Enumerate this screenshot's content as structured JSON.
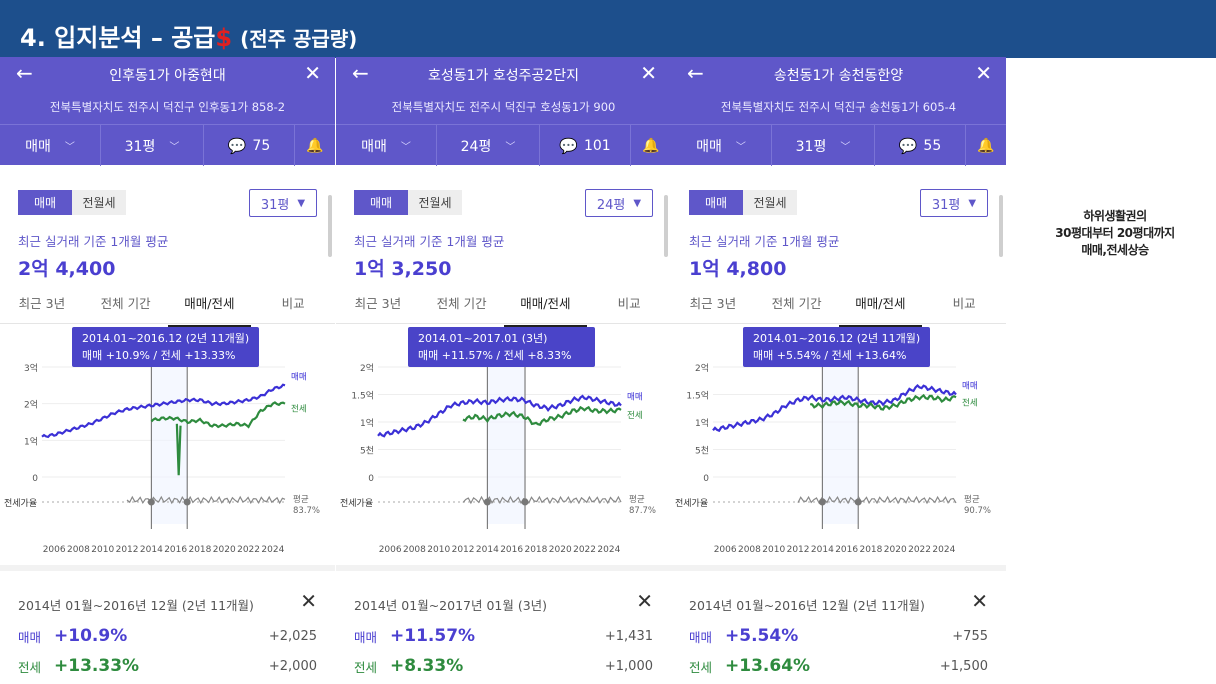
{
  "slide": {
    "title_main": "4. 입지분석 – 공급",
    "title_dollar": "$",
    "title_sub": "(전주 공급량)",
    "note_lines": [
      "하위생활권의",
      "30평대부터 20평대까지",
      "매매,전세상승"
    ]
  },
  "colors": {
    "header_bg": "#1d4f8c",
    "app_bar": "#5f57c9",
    "buy_line": "#3b30d6",
    "jeonse_line": "#2e8b3e",
    "dollar": "#e02020"
  },
  "panels": [
    {
      "name": "인후동1가 아중현대",
      "address": "전북특별자치도 전주시 덕진구 인후동1가 858-2",
      "deal_type": "매매",
      "size": "31평",
      "comments": "75",
      "toggle": [
        "매매",
        "전월세"
      ],
      "size_select": "31평",
      "recent_label": "최근 실거래 기준 1개월 평균",
      "recent_price": "2억 4,400",
      "tabs": [
        "최근 3년",
        "전체 기간",
        "매매/전세",
        "비교"
      ],
      "tooltip_range": "2014.01~2016.12 (2년 11개월)",
      "tooltip_values": "매매 +10.9%  /  전세 +13.33%",
      "y_labels": [
        "3억",
        "2억",
        "1억",
        "0"
      ],
      "series_labels": [
        "매매",
        "전세"
      ],
      "ratio_label": "전세가율",
      "avg_label": "평균",
      "avg_value": "83.7%",
      "x_labels": [
        "2006",
        "2008",
        "2010",
        "2012",
        "2014",
        "2016",
        "2018",
        "2020",
        "2022",
        "2024"
      ],
      "chart_data": {
        "type": "line",
        "x": [
          2005,
          2006,
          2007,
          2008,
          2009,
          2010,
          2011,
          2012,
          2013,
          2014,
          2015,
          2016,
          2017,
          2018,
          2019,
          2020,
          2021,
          2022,
          2023,
          2024,
          2025
        ],
        "ylim": [
          0,
          3
        ],
        "yunit": "억",
        "series": [
          {
            "name": "매매",
            "values": [
              1.1,
              1.15,
              1.25,
              1.35,
              1.45,
              1.6,
              1.75,
              1.85,
              1.9,
              1.95,
              2.0,
              2.05,
              2.1,
              2.1,
              2.0,
              2.0,
              2.05,
              2.1,
              2.2,
              2.4,
              2.5
            ]
          },
          {
            "name": "전세",
            "values": [
              null,
              null,
              null,
              null,
              null,
              null,
              null,
              null,
              null,
              1.55,
              1.6,
              1.6,
              1.5,
              1.55,
              1.4,
              1.4,
              1.45,
              1.4,
              1.8,
              2.0,
              2.0
            ]
          }
        ]
      },
      "range_text": "2014년 01월~2016년 12월 (2년 11개월)",
      "buy_label": "매매",
      "buy_pct": "+10.9%",
      "buy_amt": "+2,025",
      "jeon_label": "전세",
      "jeon_pct": "+13.33%",
      "jeon_amt": "+2,000"
    },
    {
      "name": "호성동1가 호성주공2단지",
      "address": "전북특별자치도 전주시 덕진구 호성동1가 900",
      "deal_type": "매매",
      "size": "24평",
      "comments": "101",
      "toggle": [
        "매매",
        "전월세"
      ],
      "size_select": "24평",
      "recent_label": "최근 실거래 기준 1개월 평균",
      "recent_price": "1억 3,250",
      "tabs": [
        "최근 3년",
        "전체 기간",
        "매매/전세",
        "비교"
      ],
      "tooltip_range": "2014.01~2017.01 (3년)",
      "tooltip_values": "매매 +11.57%  /  전세 +8.33%",
      "y_labels": [
        "2억",
        "1.5억",
        "1억",
        "5천",
        "0"
      ],
      "series_labels": [
        "매매",
        "전세"
      ],
      "ratio_label": "전세가율",
      "avg_label": "평균",
      "avg_value": "87.7%",
      "x_labels": [
        "2006",
        "2008",
        "2010",
        "2012",
        "2014",
        "2016",
        "2018",
        "2020",
        "2022",
        "2024"
      ],
      "chart_data": {
        "type": "line",
        "x": [
          2005,
          2006,
          2007,
          2008,
          2009,
          2010,
          2011,
          2012,
          2013,
          2014,
          2015,
          2016,
          2017,
          2018,
          2019,
          2020,
          2021,
          2022,
          2023,
          2024,
          2025
        ],
        "ylim": [
          0,
          2
        ],
        "yunit": "억",
        "series": [
          {
            "name": "매매",
            "values": [
              0.75,
              0.8,
              0.85,
              0.9,
              1.0,
              1.15,
              1.3,
              1.35,
              1.38,
              1.35,
              1.4,
              1.42,
              1.4,
              1.3,
              1.25,
              1.3,
              1.4,
              1.45,
              1.4,
              1.35,
              1.3
            ]
          },
          {
            "name": "전세",
            "values": [
              null,
              null,
              null,
              null,
              null,
              null,
              null,
              1.05,
              1.1,
              1.05,
              1.12,
              1.15,
              1.1,
              0.95,
              1.05,
              1.1,
              1.2,
              1.25,
              1.2,
              1.2,
              1.22
            ]
          }
        ]
      },
      "range_text": "2014년 01월~2017년 01월 (3년)",
      "buy_label": "매매",
      "buy_pct": "+11.57%",
      "buy_amt": "+1,431",
      "jeon_label": "전세",
      "jeon_pct": "+8.33%",
      "jeon_amt": "+1,000"
    },
    {
      "name": "송천동1가 송천동한양",
      "address": "전북특별자치도 전주시 덕진구 송천동1가 605-4",
      "deal_type": "매매",
      "size": "31평",
      "comments": "55",
      "toggle": [
        "매매",
        "전월세"
      ],
      "size_select": "31평",
      "recent_label": "최근 실거래 기준 1개월 평균",
      "recent_price": "1억 4,800",
      "tabs": [
        "최근 3년",
        "전체 기간",
        "매매/전세",
        "비교"
      ],
      "tooltip_range": "2014.01~2016.12 (2년 11개월)",
      "tooltip_values": "매매 +5.54%  /  전세 +13.64%",
      "y_labels": [
        "2억",
        "1.5억",
        "1억",
        "5천",
        "0"
      ],
      "series_labels": [
        "매매",
        "전세"
      ],
      "ratio_label": "전세가율",
      "avg_label": "평균",
      "avg_value": "90.7%",
      "x_labels": [
        "2006",
        "2008",
        "2010",
        "2012",
        "2014",
        "2016",
        "2018",
        "2020",
        "2022",
        "2024"
      ],
      "chart_data": {
        "type": "line",
        "x": [
          2005,
          2006,
          2007,
          2008,
          2009,
          2010,
          2011,
          2012,
          2013,
          2014,
          2015,
          2016,
          2017,
          2018,
          2019,
          2020,
          2021,
          2022,
          2023,
          2024,
          2025
        ],
        "ylim": [
          0,
          2
        ],
        "yunit": "억",
        "series": [
          {
            "name": "매매",
            "values": [
              0.85,
              0.9,
              0.95,
              1.0,
              1.05,
              1.15,
              1.3,
              1.4,
              1.45,
              1.4,
              1.42,
              1.45,
              1.4,
              1.35,
              1.35,
              1.4,
              1.55,
              1.65,
              1.6,
              1.55,
              1.5
            ]
          },
          {
            "name": "전세",
            "values": [
              null,
              null,
              null,
              null,
              null,
              null,
              null,
              null,
              1.3,
              1.3,
              1.35,
              1.35,
              1.3,
              1.3,
              1.25,
              1.3,
              1.4,
              1.45,
              1.45,
              1.4,
              1.45
            ]
          }
        ]
      },
      "range_text": "2014년 01월~2016년 12월 (2년 11개월)",
      "buy_label": "매매",
      "buy_pct": "+5.54%",
      "buy_amt": "+755",
      "jeon_label": "전세",
      "jeon_pct": "+13.64%",
      "jeon_amt": "+1,500"
    }
  ]
}
